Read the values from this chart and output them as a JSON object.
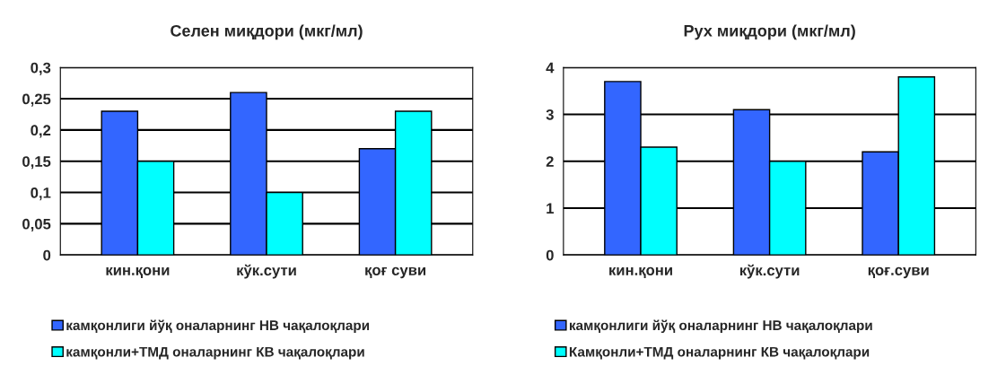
{
  "chart_data": [
    {
      "type": "bar",
      "title": "Селен миқдори (мкг/мл)",
      "categories": [
        "кин.қони",
        "кўк.сути",
        "қоғ суви"
      ],
      "series": [
        {
          "name": "камқонлиги йўқ оналарнинг НВ чақалоқлари",
          "color": "#3366ff",
          "values": [
            0.23,
            0.26,
            0.17
          ]
        },
        {
          "name": "камқонли+ТМД оналарнинг КВ чақалоқлари",
          "color": "#00ffff",
          "values": [
            0.15,
            0.1,
            0.23
          ]
        }
      ],
      "ylim": [
        0,
        0.3
      ],
      "yticks": [
        {
          "value": 0,
          "label": "0"
        },
        {
          "value": 0.05,
          "label": "0,05"
        },
        {
          "value": 0.1,
          "label": "0,1"
        },
        {
          "value": 0.15,
          "label": "0,15"
        },
        {
          "value": 0.2,
          "label": "0,2"
        },
        {
          "value": 0.25,
          "label": "0,25"
        },
        {
          "value": 0.3,
          "label": "0,3"
        }
      ],
      "grid": "y",
      "legend": "bottom"
    },
    {
      "type": "bar",
      "title": "Рух миқдори (мкг/мл)",
      "categories": [
        "кин.қони",
        "кўк.сути",
        "қоғ.суви"
      ],
      "series": [
        {
          "name": "камқонлиги йўқ оналарнинг НВ чақалоқлари",
          "color": "#3366ff",
          "values": [
            3.7,
            3.1,
            2.2
          ]
        },
        {
          "name": "Камқонли+ТМД оналарнинг КВ чақалоқлари",
          "color": "#00ffff",
          "values": [
            2.3,
            2.0,
            3.8
          ]
        }
      ],
      "ylim": [
        0,
        4
      ],
      "yticks": [
        0,
        1,
        2,
        3,
        4
      ],
      "grid": "y",
      "legend": "bottom"
    }
  ]
}
